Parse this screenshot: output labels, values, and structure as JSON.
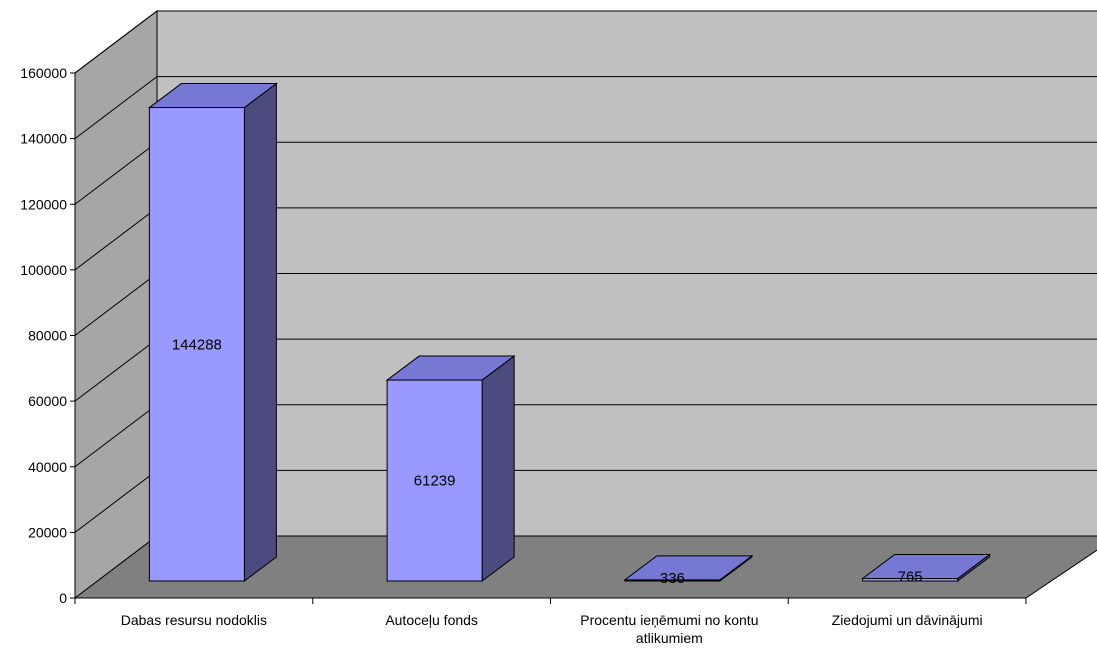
{
  "chart_data": {
    "type": "bar",
    "style": "3d-column",
    "categories": [
      [
        "Dabas resursu nodoklis"
      ],
      [
        "Autoceļu fonds"
      ],
      [
        "Procentu ieņēmumi no kontu",
        "atlikumiem"
      ],
      [
        "Ziedojumi un dāvinājumi"
      ]
    ],
    "values": [
      144288,
      61239,
      336,
      765
    ],
    "data_labels": [
      "144288",
      "61239",
      "336",
      "765"
    ],
    "ylim": [
      0,
      160000
    ],
    "yticks": [
      "0",
      "20000",
      "40000",
      "60000",
      "80000",
      "100000",
      "120000",
      "140000",
      "160000"
    ],
    "grid": true,
    "legend": "none",
    "colors": {
      "bar_front": "#9999FF",
      "bar_top": "#7777D4",
      "bar_side": "#4B4B80",
      "wall": "#C0C0C0",
      "side_wall": "#A6A6A6",
      "floor": "#808080",
      "gridline": "#000000"
    }
  }
}
